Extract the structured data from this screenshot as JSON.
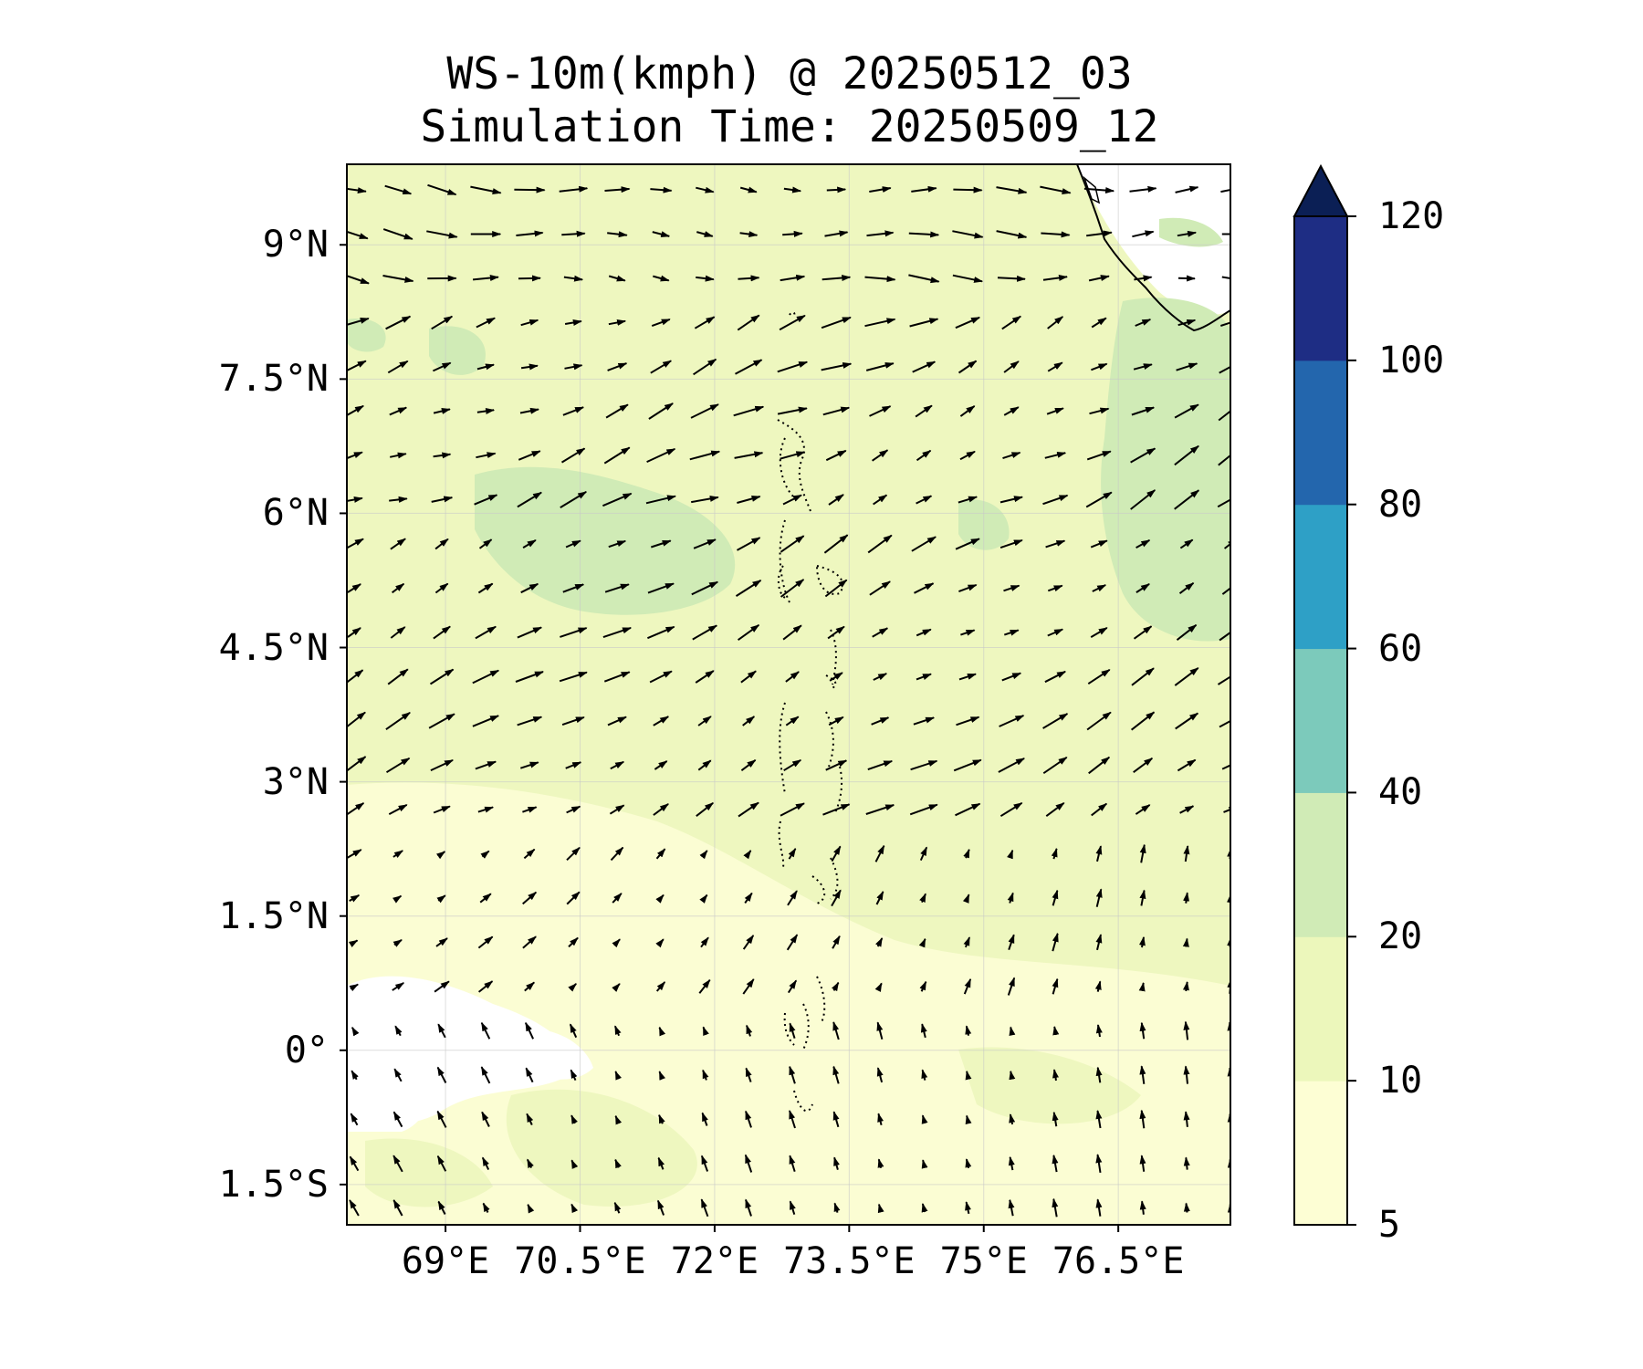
{
  "title": {
    "line1": "WS-10m(kmph) @ 20250512_03",
    "line2": "Simulation Time: 20250509_12"
  },
  "map": {
    "lon_range": [
      67.9,
      77.75
    ],
    "lat_range": [
      -1.95,
      9.9
    ],
    "lat_ticks": [
      {
        "value": 9.0,
        "label": "9°N"
      },
      {
        "value": 7.5,
        "label": "7.5°N"
      },
      {
        "value": 6.0,
        "label": "6°N"
      },
      {
        "value": 4.5,
        "label": "4.5°N"
      },
      {
        "value": 3.0,
        "label": "3°N"
      },
      {
        "value": 1.5,
        "label": "1.5°N"
      },
      {
        "value": 0.0,
        "label": "0°"
      },
      {
        "value": -1.5,
        "label": "1.5°S"
      }
    ],
    "lon_ticks": [
      {
        "value": 69.0,
        "label": "69°E"
      },
      {
        "value": 70.5,
        "label": "70.5°E"
      },
      {
        "value": 72.0,
        "label": "72°E"
      },
      {
        "value": 73.5,
        "label": "73.5°E"
      },
      {
        "value": 75.0,
        "label": "75°E"
      },
      {
        "value": 76.5,
        "label": "76.5°E"
      }
    ],
    "gridlines": true,
    "field_colors": {
      "calm": "#ffffff",
      "5-10": "#fbfdd3",
      "10-20": "#eef7bf",
      "20-40": "#d0ebb6"
    }
  },
  "colorbar": {
    "extend": "max",
    "levels": [
      5,
      10,
      20,
      40,
      60,
      80,
      100,
      120
    ],
    "labels": [
      "5",
      "10",
      "20",
      "40",
      "60",
      "80",
      "100",
      "120"
    ],
    "colors": [
      "#fdfed4",
      "#ecf7bb",
      "#d0ebb6",
      "#7ccabb",
      "#2ea0c6",
      "#2366ad",
      "#1e2d84"
    ],
    "extend_color": "#0b1f55"
  }
}
